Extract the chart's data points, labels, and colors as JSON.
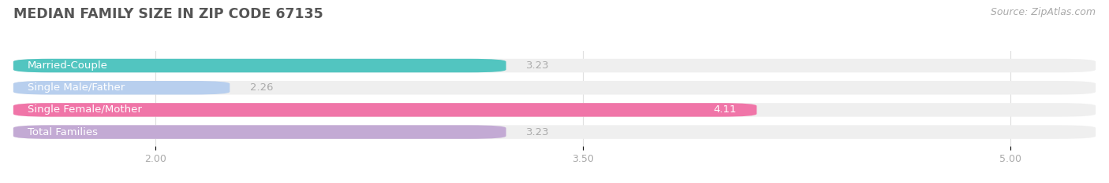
{
  "title": "MEDIAN FAMILY SIZE IN ZIP CODE 67135",
  "source": "Source: ZipAtlas.com",
  "categories": [
    "Married-Couple",
    "Single Male/Father",
    "Single Female/Mother",
    "Total Families"
  ],
  "values": [
    3.23,
    2.26,
    4.11,
    3.23
  ],
  "bar_colors": [
    "#52c5c0",
    "#b8cfee",
    "#f075a8",
    "#c3aad4"
  ],
  "bar_bg_color": "#efefef",
  "xmin": 1.5,
  "xmax": 5.3,
  "xticks": [
    2.0,
    3.5,
    5.0
  ],
  "xtick_labels": [
    "2.00",
    "3.50",
    "5.00"
  ],
  "background_color": "#ffffff",
  "bar_height": 0.62,
  "title_fontsize": 12.5,
  "cat_fontsize": 9.5,
  "val_fontsize": 9.5,
  "tick_fontsize": 9,
  "source_fontsize": 9,
  "grid_color": "#dddddd",
  "tick_color": "#aaaaaa",
  "title_color": "#555555",
  "source_color": "#aaaaaa",
  "val_color_inside": "#ffffff",
  "val_color_outside": "#aaaaaa",
  "cat_color": "#ffffff",
  "inside_threshold": 3.5
}
